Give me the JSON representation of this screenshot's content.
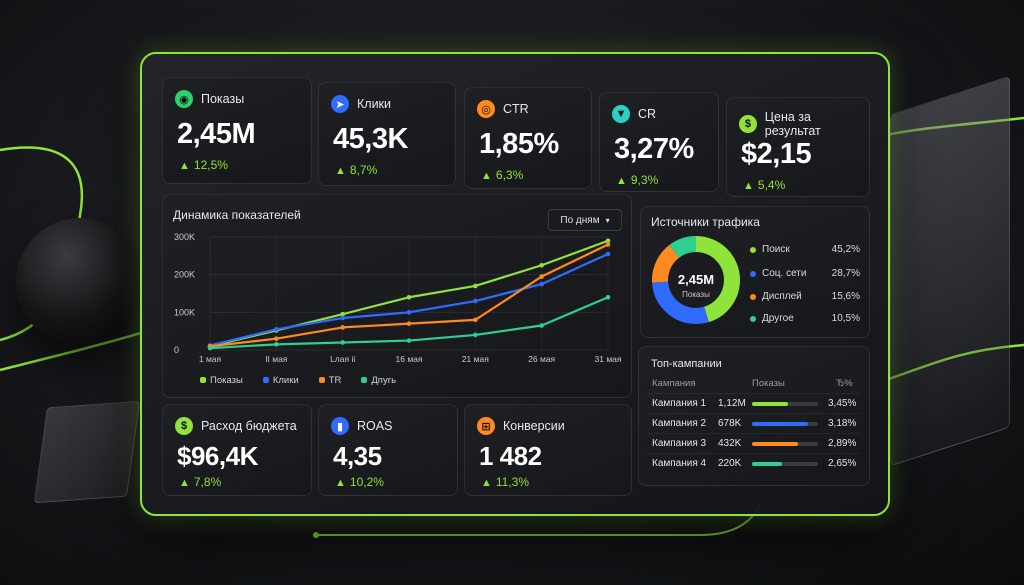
{
  "colors": {
    "accent": "#8fe33a",
    "blue": "#2f6bff",
    "orange": "#ff8a1f",
    "teal": "#2fcf8f",
    "cyan": "#2ad1c2"
  },
  "kpis": [
    {
      "label": "Показы",
      "value": "2,45M",
      "delta": "12,5%",
      "icon": "eye-icon",
      "icon_color": "#2fcf6f"
    },
    {
      "label": "Клики",
      "value": "45,3K",
      "delta": "8,7%",
      "icon": "cursor-icon",
      "icon_color": "#2f6bff"
    },
    {
      "label": "CTR",
      "value": "1,85%",
      "delta": "6,3%",
      "icon": "target-icon",
      "icon_color": "#ff8a1f"
    },
    {
      "label": "CR",
      "value": "3,27%",
      "delta": "9,3%",
      "icon": "funnel-icon",
      "icon_color": "#2ad1c2"
    },
    {
      "label": "Цена за результат",
      "value": "$2,15",
      "delta": "5,4%",
      "icon": "dollar-icon",
      "icon_color": "#8fe33a"
    }
  ],
  "kpis_bottom": [
    {
      "label": "Расход бюджета",
      "value": "$96,4K",
      "delta": "7,8%",
      "icon": "dollar-icon",
      "icon_color": "#8fe33a"
    },
    {
      "label": "ROAS",
      "value": "4,35",
      "delta": "10,2%",
      "icon": "bar-chart-icon",
      "icon_color": "#2f6bff"
    },
    {
      "label": "Конверсии",
      "value": "1 482",
      "delta": "11,3%",
      "icon": "cart-icon",
      "icon_color": "#ff8a1f"
    }
  ],
  "dynamics": {
    "title": "Динамика показателей",
    "period": "По дням"
  },
  "chart_data": {
    "type": "line",
    "x": [
      "1 мая",
      "6 мая",
      "11 мая",
      "16 мая",
      "21 мая",
      "26 мая",
      "31 мая"
    ],
    "x_tick_labels": [
      "1 мая",
      "II мая",
      "Lлая ii",
      "16 мая",
      "21 мая",
      "26 мая",
      "31 мая"
    ],
    "yticks": [
      "300K",
      "200K",
      "100K",
      "0"
    ],
    "ylim": [
      0,
      300000
    ],
    "grid": true,
    "legend_position": "bottom-left",
    "series": [
      {
        "name": "Показы",
        "color": "#8fe33a",
        "values": [
          10000,
          52000,
          95000,
          140000,
          170000,
          225000,
          290000
        ]
      },
      {
        "name": "Клики",
        "color": "#2f6bff",
        "values": [
          12000,
          55000,
          85000,
          100000,
          130000,
          175000,
          255000
        ]
      },
      {
        "name": "TR",
        "color": "#ff8a1f",
        "values": [
          10000,
          30000,
          60000,
          70000,
          80000,
          195000,
          280000
        ]
      },
      {
        "name": "Дпугь",
        "color": "#2fcf8f",
        "values": [
          5000,
          15000,
          20000,
          25000,
          40000,
          65000,
          140000
        ]
      }
    ]
  },
  "traffic": {
    "title": "Источники трафика",
    "center_value": "2,45M",
    "center_label": "Показы",
    "items": [
      {
        "name": "Поиск",
        "value": "45,2%",
        "pct": 45.2,
        "color": "#8fe33a"
      },
      {
        "name": "Соц. сети",
        "value": "28,7%",
        "pct": 28.7,
        "color": "#2f6bff"
      },
      {
        "name": "Дисплей",
        "value": "15,6%",
        "pct": 15.6,
        "color": "#ff8a1f"
      },
      {
        "name": "Другое",
        "value": "10,5%",
        "pct": 10.5,
        "color": "#2fcf8f"
      }
    ]
  },
  "campaigns": {
    "title": "Топ-кампании",
    "headers": [
      "Кампания",
      "Показы",
      "Ђ%"
    ],
    "rows": [
      {
        "name": "Кампания 1",
        "shows": "1,12M",
        "ctr": "3,45%",
        "fill": 0.55,
        "color": "#8fe33a"
      },
      {
        "name": "Кампания 2",
        "shows": "678K",
        "ctr": "3,18%",
        "fill": 0.85,
        "color": "#2f6bff"
      },
      {
        "name": "Кампания 3",
        "shows": "432K",
        "ctr": "2,89%",
        "fill": 0.7,
        "color": "#ff8a1f"
      },
      {
        "name": "Кампания 4",
        "shows": "220K",
        "ctr": "2,65%",
        "fill": 0.45,
        "color": "#2fcf8f"
      }
    ]
  }
}
